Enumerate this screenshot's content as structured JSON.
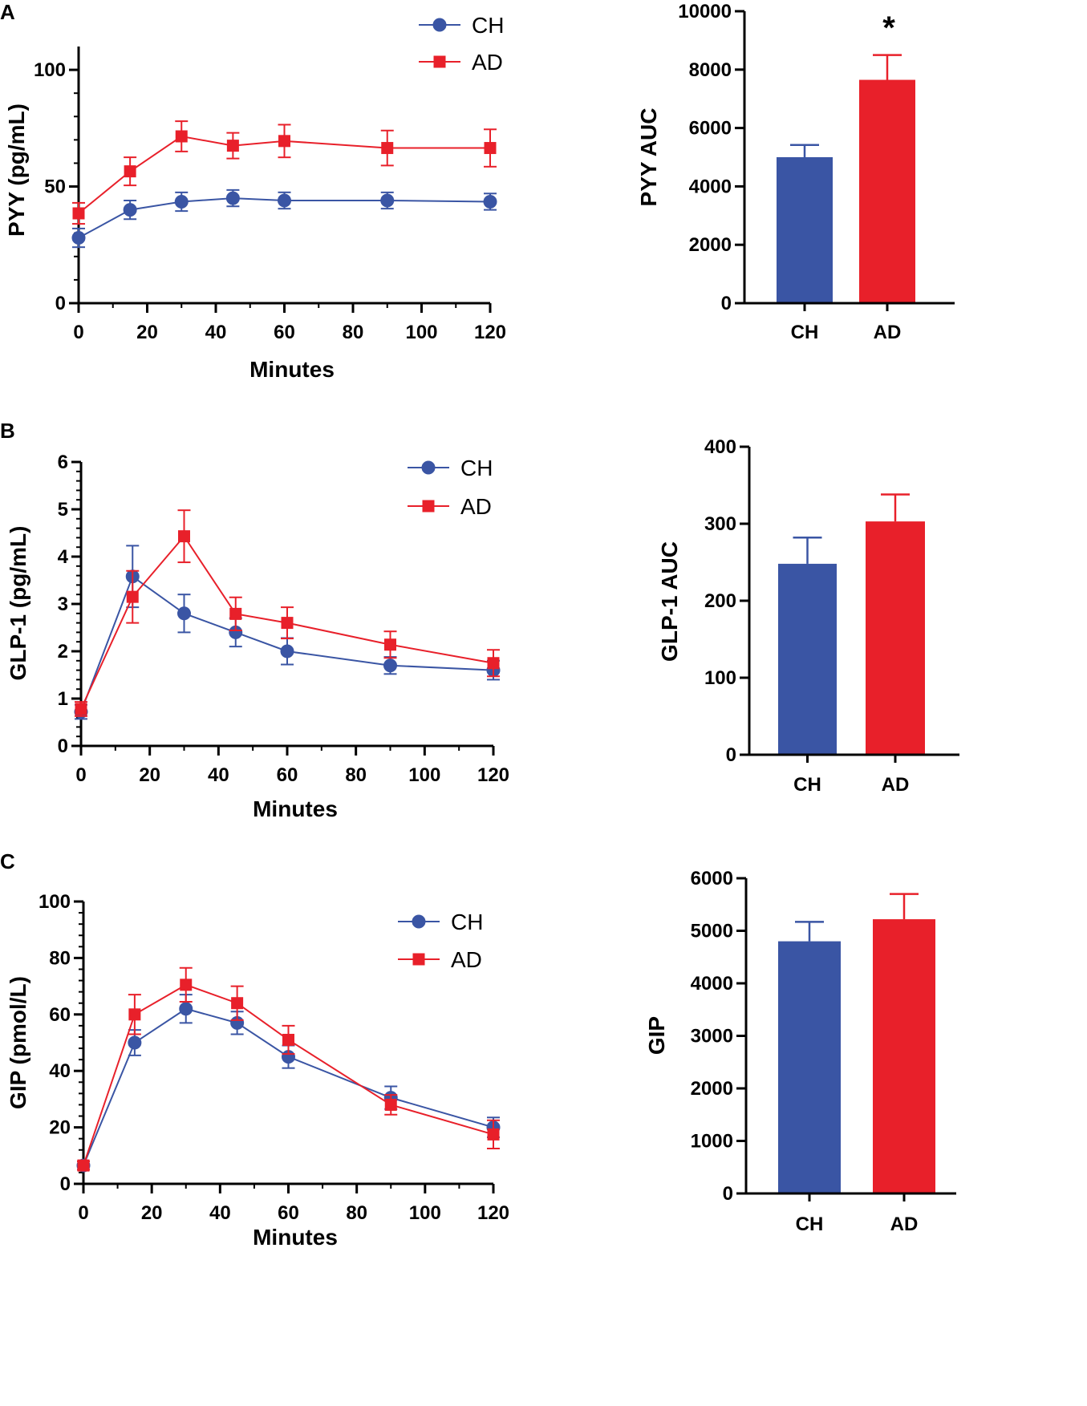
{
  "colors": {
    "CH": "#3a55a4",
    "AD": "#e8202a",
    "axis": "#000000"
  },
  "chart_data": [
    {
      "id": "A-line",
      "panel_label": "A",
      "type": "line",
      "xlabel": "Minutes",
      "ylabel": "PYY (pg/mL)",
      "xlim": [
        0,
        120
      ],
      "ylim": [
        0,
        110
      ],
      "xticks": [
        0,
        20,
        40,
        60,
        80,
        100,
        120
      ],
      "yticks": [
        0,
        50,
        100
      ],
      "x": [
        0,
        15,
        30,
        45,
        60,
        90,
        120
      ],
      "legend": [
        "CH",
        "AD"
      ],
      "series": [
        {
          "name": "CH",
          "marker": "circle",
          "values": [
            28,
            40,
            43.5,
            45,
            44,
            44,
            43.5
          ],
          "errors": [
            4,
            4,
            4,
            3.5,
            3.5,
            3.5,
            3.5
          ]
        },
        {
          "name": "AD",
          "marker": "square",
          "values": [
            38.5,
            56.5,
            71.5,
            67.5,
            69.5,
            66.5,
            66.5
          ],
          "errors": [
            4.5,
            6,
            6.5,
            5.5,
            7,
            7.5,
            8
          ]
        }
      ]
    },
    {
      "id": "A-bar",
      "type": "bar",
      "ylabel": "PYY AUC",
      "ylim": [
        0,
        10000
      ],
      "yticks": [
        0,
        2000,
        4000,
        6000,
        8000,
        10000
      ],
      "categories": [
        "CH",
        "AD"
      ],
      "values": [
        5000,
        7650
      ],
      "errors": [
        420,
        850
      ],
      "annotations": [
        {
          "category": "AD",
          "text": "*"
        }
      ]
    },
    {
      "id": "B-line",
      "panel_label": "B",
      "type": "line",
      "xlabel": "Minutes",
      "ylabel": "GLP-1 (pg/mL)",
      "xlim": [
        0,
        120
      ],
      "ylim": [
        0,
        6
      ],
      "xticks": [
        0,
        20,
        40,
        60,
        80,
        100,
        120
      ],
      "yticks": [
        0,
        1,
        2,
        3,
        4,
        5,
        6
      ],
      "x": [
        0,
        15,
        30,
        45,
        60,
        90,
        120
      ],
      "legend": [
        "CH",
        "AD"
      ],
      "series": [
        {
          "name": "CH",
          "marker": "circle",
          "values": [
            0.72,
            3.58,
            2.8,
            2.4,
            2.0,
            1.7,
            1.6
          ],
          "errors": [
            0.15,
            0.65,
            0.4,
            0.3,
            0.28,
            0.18,
            0.2
          ]
        },
        {
          "name": "AD",
          "marker": "square",
          "values": [
            0.78,
            3.15,
            4.43,
            2.79,
            2.6,
            2.14,
            1.75
          ],
          "errors": [
            0.15,
            0.55,
            0.55,
            0.35,
            0.33,
            0.28,
            0.28
          ]
        }
      ]
    },
    {
      "id": "B-bar",
      "type": "bar",
      "ylabel": "GLP-1 AUC",
      "ylim": [
        0,
        400
      ],
      "yticks": [
        0,
        100,
        200,
        300,
        400
      ],
      "categories": [
        "CH",
        "AD"
      ],
      "values": [
        248,
        303
      ],
      "errors": [
        34,
        35
      ],
      "annotations": []
    },
    {
      "id": "C-line",
      "panel_label": "C",
      "type": "line",
      "xlabel": "Minutes",
      "ylabel": "GIP (pmol/L)",
      "xlim": [
        0,
        120
      ],
      "ylim": [
        0,
        100
      ],
      "xticks": [
        0,
        20,
        40,
        60,
        80,
        100,
        120
      ],
      "yticks": [
        0,
        20,
        40,
        60,
        80,
        100
      ],
      "x": [
        0,
        15,
        30,
        45,
        60,
        90,
        120
      ],
      "legend": [
        "CH",
        "AD"
      ],
      "series": [
        {
          "name": "CH",
          "marker": "circle",
          "values": [
            6.5,
            50,
            62,
            57,
            45,
            30.5,
            20
          ],
          "errors": [
            1.5,
            4.5,
            5,
            4,
            4,
            4,
            3.5
          ]
        },
        {
          "name": "AD",
          "marker": "square",
          "values": [
            6.5,
            60,
            70.5,
            64,
            51,
            28,
            17.5
          ],
          "errors": [
            1.5,
            7,
            6,
            6,
            5,
            3.5,
            5
          ]
        }
      ]
    },
    {
      "id": "C-bar",
      "type": "bar",
      "ylabel": "GIP",
      "ylim": [
        0,
        6000
      ],
      "yticks": [
        0,
        1000,
        2000,
        3000,
        4000,
        5000,
        6000
      ],
      "categories": [
        "CH",
        "AD"
      ],
      "values": [
        4800,
        5220
      ],
      "errors": [
        370,
        480
      ],
      "annotations": []
    }
  ]
}
